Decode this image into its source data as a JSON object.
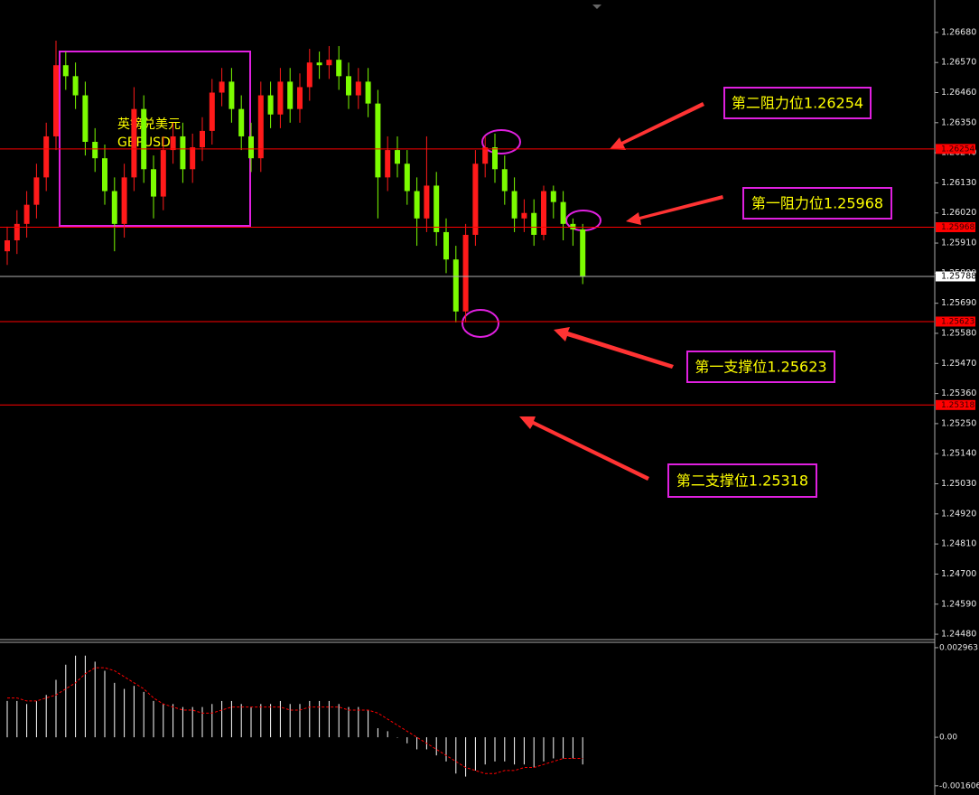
{
  "chart_data": {
    "type": "candlestick",
    "title": "英镑兑美元",
    "subtitle": "GBPUSD",
    "open": [
      1.2588,
      1.2592,
      1.2598,
      1.2605,
      1.2615,
      1.263,
      1.2656,
      1.2652,
      1.2645,
      1.2628,
      1.2622,
      1.261,
      1.2598,
      1.2615,
      1.264,
      1.2618,
      1.2608,
      1.2625,
      1.263,
      1.2618,
      1.2626,
      1.2632,
      1.2646,
      1.265,
      1.264,
      1.263,
      1.2622,
      1.2645,
      1.2638,
      1.265,
      1.264,
      1.2648,
      1.2657,
      1.2656,
      1.2658,
      1.2652,
      1.2645,
      1.265,
      1.2642,
      1.2615,
      1.2625,
      1.262,
      1.261,
      1.26,
      1.2612,
      1.2595,
      1.2585,
      1.2566,
      1.2594,
      1.262,
      1.2626,
      1.2618,
      1.261,
      1.26,
      1.2602,
      1.2594,
      1.261,
      1.2606,
      1.2598,
      1.2596
    ],
    "high": [
      1.2597,
      1.2603,
      1.261,
      1.262,
      1.2635,
      1.2665,
      1.2661,
      1.2657,
      1.265,
      1.2633,
      1.2627,
      1.2615,
      1.262,
      1.2648,
      1.2645,
      1.2623,
      1.263,
      1.2635,
      1.2635,
      1.2631,
      1.2637,
      1.2651,
      1.2655,
      1.2655,
      1.2645,
      1.2635,
      1.265,
      1.265,
      1.2655,
      1.2655,
      1.2653,
      1.2662,
      1.2661,
      1.2663,
      1.2663,
      1.2657,
      1.2655,
      1.2655,
      1.2647,
      1.263,
      1.263,
      1.2625,
      1.2615,
      1.263,
      1.2617,
      1.26,
      1.259,
      1.2598,
      1.2625,
      1.263,
      1.2631,
      1.2623,
      1.2615,
      1.2607,
      1.2607,
      1.2612,
      1.2612,
      1.261,
      1.26,
      1.2598
    ],
    "low": [
      1.2583,
      1.2587,
      1.2593,
      1.26,
      1.261,
      1.2625,
      1.2647,
      1.264,
      1.2623,
      1.2617,
      1.2605,
      1.2588,
      1.2593,
      1.261,
      1.2613,
      1.26,
      1.2603,
      1.262,
      1.2613,
      1.2613,
      1.2621,
      1.2627,
      1.2641,
      1.2635,
      1.2625,
      1.2617,
      1.2617,
      1.2633,
      1.2633,
      1.2635,
      1.2635,
      1.2643,
      1.2651,
      1.2651,
      1.2647,
      1.264,
      1.264,
      1.2637,
      1.26,
      1.261,
      1.2615,
      1.2605,
      1.259,
      1.2595,
      1.259,
      1.258,
      1.2562,
      1.2562,
      1.259,
      1.2615,
      1.2613,
      1.2605,
      1.2595,
      1.2595,
      1.259,
      1.2592,
      1.26,
      1.2592,
      1.259,
      1.2576
    ],
    "close": [
      1.2592,
      1.2598,
      1.2605,
      1.2615,
      1.263,
      1.2656,
      1.2652,
      1.2645,
      1.2628,
      1.2622,
      1.261,
      1.2598,
      1.2615,
      1.264,
      1.2618,
      1.2608,
      1.2625,
      1.263,
      1.2618,
      1.2626,
      1.2632,
      1.2646,
      1.265,
      1.264,
      1.263,
      1.2622,
      1.2645,
      1.2638,
      1.265,
      1.264,
      1.2648,
      1.2657,
      1.2656,
      1.2658,
      1.2652,
      1.2645,
      1.265,
      1.2642,
      1.2615,
      1.2625,
      1.262,
      1.261,
      1.26,
      1.2612,
      1.2595,
      1.2585,
      1.2566,
      1.2594,
      1.262,
      1.2626,
      1.2618,
      1.261,
      1.26,
      1.2602,
      1.2594,
      1.261,
      1.2606,
      1.2598,
      1.2596,
      1.25788
    ],
    "up_color": "#ff1a1a",
    "down_color": "#7cfc00",
    "ylim": [
      1.24467,
      1.26782
    ],
    "yticks": [
      {
        "value": 1.2668,
        "label": "1.26680"
      },
      {
        "value": 1.2657,
        "label": "1.26570"
      },
      {
        "value": 1.2646,
        "label": "1.26460"
      },
      {
        "value": 1.2635,
        "label": "1.26350"
      },
      {
        "value": 1.2624,
        "label": "1.26240"
      },
      {
        "value": 1.2613,
        "label": "1.26130"
      },
      {
        "value": 1.2602,
        "label": "1.26020"
      },
      {
        "value": 1.2591,
        "label": "1.25910"
      },
      {
        "value": 1.258,
        "label": "1.25800"
      },
      {
        "value": 1.2569,
        "label": "1.25690"
      },
      {
        "value": 1.2558,
        "label": "1.25580"
      },
      {
        "value": 1.2547,
        "label": "1.25470"
      },
      {
        "value": 1.2536,
        "label": "1.25360"
      },
      {
        "value": 1.2525,
        "label": "1.25250"
      },
      {
        "value": 1.2514,
        "label": "1.25140"
      },
      {
        "value": 1.2503,
        "label": "1.25030"
      },
      {
        "value": 1.2492,
        "label": "1.24920"
      },
      {
        "value": 1.2481,
        "label": "1.24810"
      },
      {
        "value": 1.247,
        "label": "1.24700"
      },
      {
        "value": 1.2459,
        "label": "1.24590"
      },
      {
        "value": 1.2448,
        "label": "1.24480"
      }
    ],
    "levels": [
      1.26254,
      1.25968,
      1.25623,
      1.25318
    ],
    "level_color": "#ff0000",
    "current_price": 1.25788,
    "annotations": [
      "第二阻力位1.26254",
      "第一阻力位1.25968",
      "第一支撑位1.25623",
      "第二支撑位1.25318"
    ],
    "indicator": {
      "type": "macd",
      "histogram": [
        0.0012,
        0.0012,
        0.0011,
        0.0012,
        0.0014,
        0.0019,
        0.0024,
        0.0027,
        0.0027,
        0.0025,
        0.0022,
        0.0018,
        0.0016,
        0.0017,
        0.0015,
        0.0012,
        0.0011,
        0.0011,
        0.001,
        0.001,
        0.001,
        0.0011,
        0.0012,
        0.0012,
        0.0011,
        0.001,
        0.0011,
        0.0011,
        0.0012,
        0.0011,
        0.0011,
        0.0012,
        0.0012,
        0.0012,
        0.0011,
        0.001,
        0.001,
        0.0009,
        0.0003,
        0.0002,
        0.0,
        -0.0002,
        -0.0004,
        -0.0004,
        -0.0006,
        -0.0008,
        -0.0012,
        -0.0013,
        -0.0011,
        -0.0009,
        -0.0008,
        -0.0008,
        -0.0009,
        -0.0009,
        -0.001,
        -0.0008,
        -0.0007,
        -0.0007,
        -0.0007,
        -0.0009
      ],
      "signal": [
        0.0013,
        0.0013,
        0.0012,
        0.0012,
        0.0013,
        0.0014,
        0.0016,
        0.0018,
        0.0021,
        0.0023,
        0.0023,
        0.0022,
        0.002,
        0.0018,
        0.0016,
        0.0013,
        0.0011,
        0.001,
        0.0009,
        0.0009,
        0.0008,
        0.0008,
        0.0009,
        0.001,
        0.001,
        0.001,
        0.001,
        0.001,
        0.001,
        0.0009,
        0.0009,
        0.001,
        0.001,
        0.001,
        0.001,
        0.0009,
        0.0009,
        0.0009,
        0.0008,
        0.0006,
        0.0004,
        0.0002,
        0.0,
        -0.0002,
        -0.0004,
        -0.0006,
        -0.0008,
        -0.001,
        -0.0011,
        -0.0012,
        -0.0012,
        -0.0011,
        -0.0011,
        -0.001,
        -0.001,
        -0.0009,
        -0.0008,
        -0.0007,
        -0.0007,
        -0.0007
      ],
      "histogram_color": "#ffffff",
      "signal_color": "#ff0000",
      "ylim": [
        -0.00185,
        0.00314
      ],
      "yticks": [
        0.002963,
        {
          "value": 0,
          "label": "0.00"
        },
        -0.001606
      ]
    }
  }
}
